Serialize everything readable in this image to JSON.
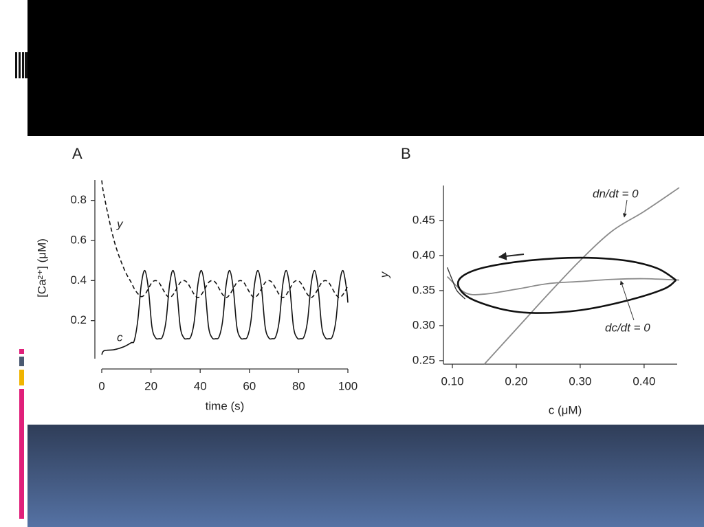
{
  "chart_data": [
    {
      "type": "line",
      "panel": "A",
      "ylabel": "[Ca²⁺] (μM)",
      "xlabel": "time (s)",
      "x": [
        0,
        1,
        5,
        9,
        12,
        13.2,
        14.63,
        16.06,
        17.5,
        18.94,
        20.38,
        21.81,
        23.25,
        24.69,
        26.13,
        27.56,
        29,
        30.44,
        31.88,
        33.31,
        34.75,
        36.19,
        37.63,
        39.06,
        40.5,
        41.94,
        43.38,
        44.81,
        46.25,
        47.69,
        49.13,
        50.56,
        52,
        53.44,
        54.88,
        56.31,
        57.75,
        59.19,
        60.63,
        62.06,
        63.5,
        64.94,
        66.38,
        67.81,
        69.25,
        70.69,
        72.13,
        73.56,
        75,
        76.44,
        77.88,
        79.31,
        80.75,
        82.19,
        83.63,
        85.06,
        86.5,
        87.94,
        89.38,
        90.81,
        92.25,
        93.69,
        95.13,
        96.56,
        98,
        99.44,
        100
      ],
      "series": [
        {
          "name": "c",
          "color": "#111111",
          "style": "solid",
          "values": [
            0.03,
            0.05,
            0.055,
            0.07,
            0.09,
            0.1,
            0.2,
            0.38,
            0.45,
            0.36,
            0.17,
            0.115,
            0.11,
            0.12,
            0.2,
            0.38,
            0.45,
            0.36,
            0.17,
            0.115,
            0.11,
            0.12,
            0.2,
            0.38,
            0.45,
            0.36,
            0.17,
            0.115,
            0.11,
            0.12,
            0.2,
            0.38,
            0.45,
            0.36,
            0.17,
            0.115,
            0.11,
            0.12,
            0.2,
            0.38,
            0.45,
            0.36,
            0.17,
            0.115,
            0.11,
            0.12,
            0.2,
            0.38,
            0.45,
            0.36,
            0.17,
            0.115,
            0.11,
            0.12,
            0.2,
            0.38,
            0.45,
            0.36,
            0.17,
            0.115,
            0.11,
            0.12,
            0.2,
            0.38,
            0.45,
            0.36,
            0.29
          ]
        },
        {
          "name": "y",
          "color": "#111111",
          "style": "dashed",
          "values": [
            0.9,
            0.82,
            0.6,
            0.46,
            0.39,
            0.36,
            0.335,
            0.32,
            0.33,
            0.36,
            0.39,
            0.4,
            0.39,
            0.36,
            0.33,
            0.315,
            0.33,
            0.36,
            0.39,
            0.4,
            0.39,
            0.36,
            0.33,
            0.315,
            0.33,
            0.36,
            0.39,
            0.4,
            0.39,
            0.36,
            0.33,
            0.315,
            0.33,
            0.36,
            0.39,
            0.4,
            0.39,
            0.36,
            0.33,
            0.315,
            0.33,
            0.36,
            0.39,
            0.4,
            0.39,
            0.36,
            0.33,
            0.315,
            0.33,
            0.36,
            0.39,
            0.4,
            0.39,
            0.36,
            0.33,
            0.315,
            0.33,
            0.36,
            0.39,
            0.4,
            0.39,
            0.36,
            0.33,
            0.315,
            0.33,
            0.36,
            0.38
          ]
        }
      ],
      "xlim": [
        0,
        100
      ],
      "xticks": [
        0,
        20,
        40,
        60,
        80,
        100
      ],
      "ylim": [
        0,
        0.9
      ],
      "yticks": [
        0.2,
        0.4,
        0.6,
        0.8
      ]
    },
    {
      "type": "line",
      "panel": "B",
      "ylabel": "y",
      "xlabel": "c (μM)",
      "annotations": [
        "dn/dt = 0",
        "dc/dt = 0"
      ],
      "series": [
        {
          "color": "#8a8a8a",
          "width": 1.8,
          "x": [
            0.15,
            0.2,
            0.25,
            0.3,
            0.35,
            0.4,
            0.455
          ],
          "values": [
            0.245,
            0.295,
            0.345,
            0.393,
            0.435,
            0.463,
            0.497
          ]
        },
        {
          "color": "#8a8a8a",
          "width": 1.8,
          "x": [
            0.092,
            0.12,
            0.15,
            0.2,
            0.25,
            0.3,
            0.35,
            0.4,
            0.455
          ],
          "values": [
            0.37,
            0.347,
            0.345,
            0.352,
            0.36,
            0.363,
            0.366,
            0.367,
            0.365
          ]
        },
        {
          "color": "#111111",
          "width": 2.6,
          "x": [
            0.45,
            0.42,
            0.37,
            0.3,
            0.22,
            0.15,
            0.115,
            0.11,
            0.13,
            0.18,
            0.23,
            0.3,
            0.37,
            0.43,
            0.45
          ],
          "values": [
            0.365,
            0.382,
            0.393,
            0.397,
            0.393,
            0.383,
            0.37,
            0.355,
            0.338,
            0.323,
            0.318,
            0.322,
            0.335,
            0.352,
            0.365
          ]
        },
        {
          "color": "#333333",
          "width": 1.4,
          "x": [
            0.092,
            0.1,
            0.107,
            0.12
          ],
          "values": [
            0.383,
            0.365,
            0.35,
            0.338
          ]
        }
      ],
      "xlim": [
        0.086,
        0.455
      ],
      "xticks": [
        {
          "value": 0.1,
          "label": "0.10"
        },
        {
          "value": 0.2,
          "label": "0.20"
        },
        {
          "value": 0.3,
          "label": "0.30"
        },
        {
          "value": 0.4,
          "label": "0.40"
        }
      ],
      "ylim": [
        0.245,
        0.5
      ],
      "yticks": [
        0.25,
        {
          "value": 0.3,
          "label": "0.30"
        },
        0.35,
        {
          "value": 0.4,
          "label": "0.40"
        },
        0.45
      ]
    }
  ]
}
